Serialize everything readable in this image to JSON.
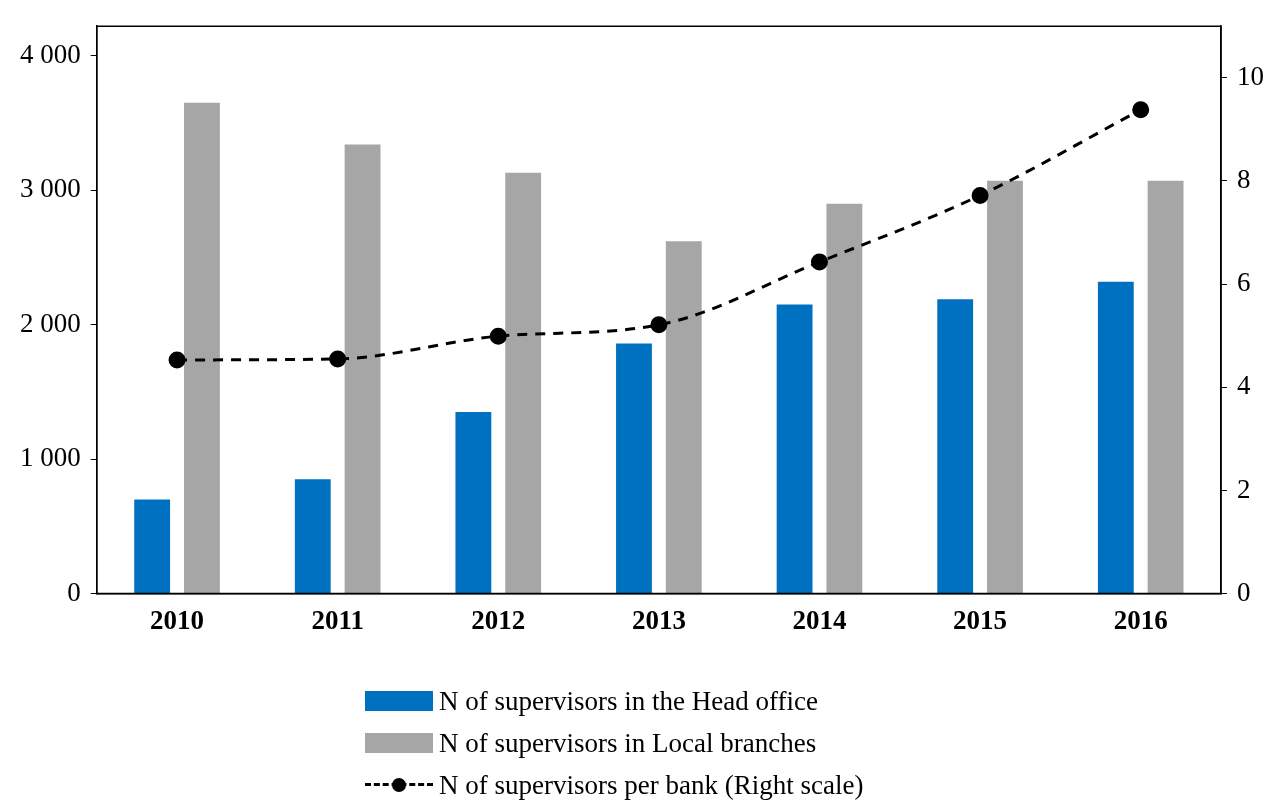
{
  "chart_data": {
    "type": "bar",
    "categories": [
      "2010",
      "2011",
      "2012",
      "2013",
      "2014",
      "2015",
      "2016"
    ],
    "series": [
      {
        "name": "N of supervisors in the Head office",
        "color": "#0070c0",
        "values": [
          700,
          850,
          1350,
          1860,
          2150,
          2190,
          2320
        ]
      },
      {
        "name": "N of supervisors in Local branches",
        "color": "#a6a6a6",
        "values": [
          3650,
          3340,
          3130,
          2620,
          2900,
          3070,
          3070
        ]
      },
      {
        "name": "N of supervisors per bank (Right scale)",
        "type": "line",
        "axis": "y2",
        "color": "#000000",
        "line_style": "dashed",
        "marker": "circle",
        "values": [
          4.53,
          4.55,
          4.99,
          5.21,
          6.43,
          7.72,
          9.38
        ]
      }
    ],
    "ylim": [
      0,
      4220
    ],
    "yticks": [
      {
        "value": 0,
        "label": "0"
      },
      {
        "value": 1000,
        "label": "1 000"
      },
      {
        "value": 2000,
        "label": "2 000"
      },
      {
        "value": 3000,
        "label": "3 000"
      },
      {
        "value": 4000,
        "label": "4 000"
      }
    ],
    "y2lim": [
      0,
      11
    ],
    "y2ticks": [
      0,
      2,
      4,
      6,
      8,
      10
    ],
    "grid": false,
    "legend": "bottom"
  }
}
